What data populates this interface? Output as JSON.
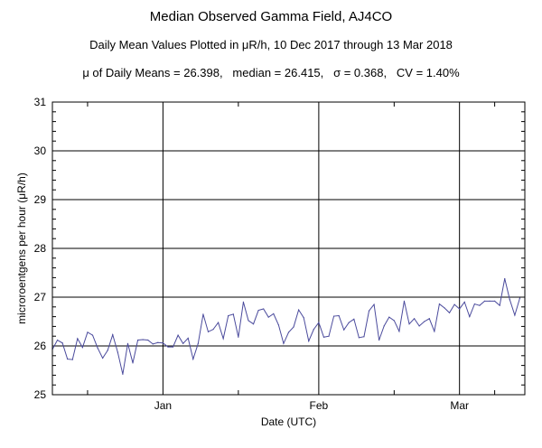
{
  "chart_data": {
    "type": "line",
    "title": "Median Observed Gamma Field, AJ4CO",
    "subtitle": "Daily Mean Values Plotted in μR/h, 10 Dec 2017 through 13 Mar 2018",
    "stats_line": "μ of Daily Means = 26.398,   median = 26.415,   σ = 0.368,   CV = 1.40%",
    "xlabel": "Date (UTC)",
    "ylabel": "microroentgens per hour (μR/h)",
    "ylim": [
      25,
      31
    ],
    "yticks": [
      "25",
      "26",
      "27",
      "28",
      "29",
      "30",
      "31"
    ],
    "xlim_days": [
      0,
      94
    ],
    "xticks": [
      {
        "label": "Jan",
        "day": 22
      },
      {
        "label": "Feb",
        "day": 53
      },
      {
        "label": "Mar",
        "day": 81
      }
    ],
    "minor_tick_days": [
      7,
      37,
      68,
      88
    ],
    "grid": true,
    "series": [
      {
        "name": "Daily mean",
        "color": "#4a4a9c",
        "start_date": "10 Dec 2017",
        "values": [
          25.93,
          26.12,
          26.06,
          25.73,
          25.72,
          26.15,
          25.97,
          26.28,
          26.22,
          25.96,
          25.75,
          25.91,
          26.23,
          25.87,
          25.42,
          26.05,
          25.65,
          26.12,
          26.13,
          26.12,
          26.04,
          26.07,
          26.06,
          25.98,
          25.98,
          26.22,
          26.05,
          26.16,
          25.73,
          26.05,
          26.65,
          26.29,
          26.34,
          26.48,
          26.15,
          26.62,
          26.65,
          26.18,
          26.9,
          26.52,
          26.45,
          26.73,
          26.76,
          26.59,
          26.66,
          26.43,
          26.05,
          26.28,
          26.39,
          26.74,
          26.58,
          26.1,
          26.34,
          26.48,
          26.18,
          26.2,
          26.61,
          26.62,
          26.33,
          26.48,
          26.55,
          26.17,
          26.19,
          26.72,
          26.85,
          26.12,
          26.41,
          26.59,
          26.52,
          26.3,
          26.92,
          26.45,
          26.56,
          26.41,
          26.5,
          26.56,
          26.3,
          26.86,
          26.78,
          26.68,
          26.85,
          26.76,
          26.9,
          26.6,
          26.86,
          26.83,
          26.92,
          26.92,
          26.92,
          26.83,
          27.38,
          26.95,
          26.63,
          26.98
        ]
      }
    ]
  }
}
